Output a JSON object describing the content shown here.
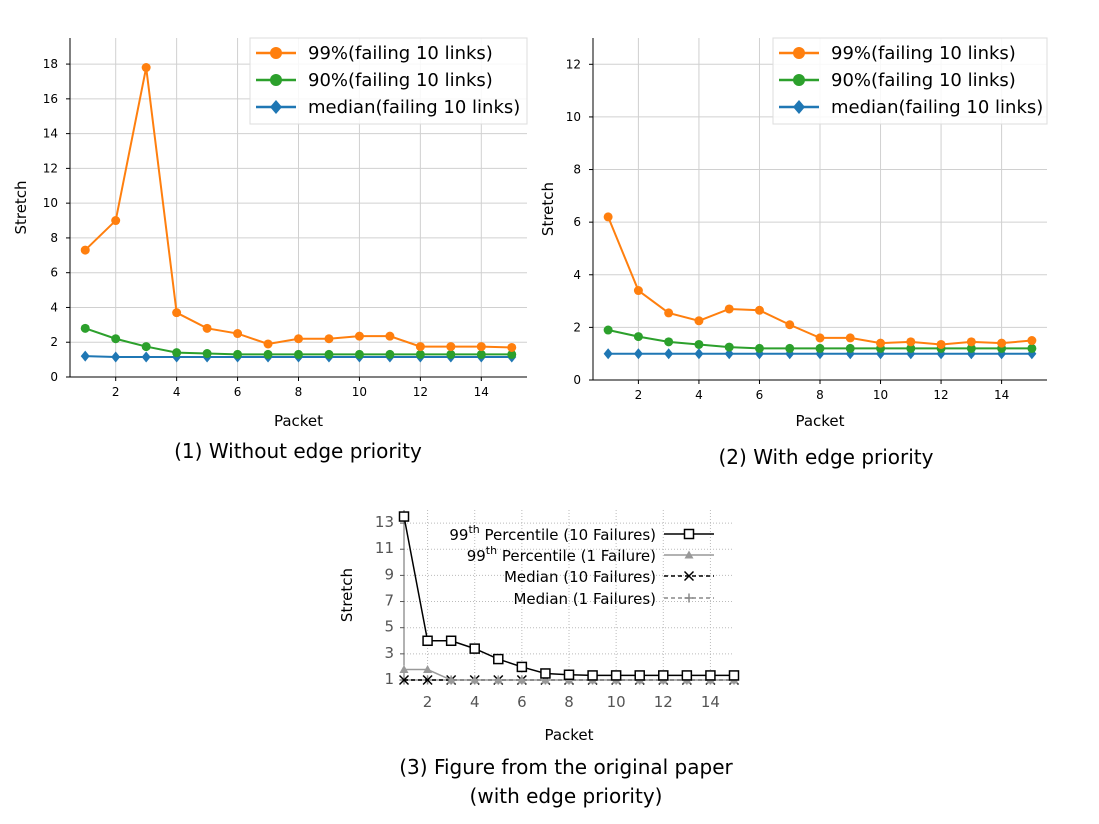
{
  "chart_data": [
    {
      "type": "line",
      "caption": "(1) Without edge priority",
      "xlabel": "Packet",
      "ylabel": "Stretch",
      "xlim": [
        0.5,
        15.5
      ],
      "ylim": [
        0,
        19.5
      ],
      "xticks": [
        "2",
        "4",
        "6",
        "8",
        "10",
        "12",
        "14"
      ],
      "yticks": [
        "0",
        "2",
        "4",
        "6",
        "8",
        "10",
        "12",
        "14",
        "16",
        "18"
      ],
      "grid": true,
      "legend_position": "top-right",
      "x": [
        1,
        2,
        3,
        4,
        5,
        6,
        7,
        8,
        9,
        10,
        11,
        12,
        13,
        14,
        15
      ],
      "series": [
        {
          "name": "99%(failing 10 links)",
          "color": "#ff7f0e",
          "marker": "circle",
          "values": [
            7.3,
            9.0,
            17.8,
            3.7,
            2.8,
            2.5,
            1.9,
            2.2,
            2.2,
            2.35,
            2.35,
            1.75,
            1.75,
            1.75,
            1.7
          ]
        },
        {
          "name": "90%(failing 10 links)",
          "color": "#2ca02c",
          "marker": "circle",
          "values": [
            2.8,
            2.2,
            1.75,
            1.4,
            1.35,
            1.3,
            1.3,
            1.3,
            1.3,
            1.3,
            1.3,
            1.3,
            1.3,
            1.3,
            1.3
          ]
        },
        {
          "name": "median(failing 10 links)",
          "color": "#1f77b4",
          "marker": "diamond",
          "values": [
            1.2,
            1.15,
            1.15,
            1.15,
            1.15,
            1.15,
            1.15,
            1.15,
            1.15,
            1.15,
            1.15,
            1.15,
            1.15,
            1.15,
            1.15
          ]
        }
      ]
    },
    {
      "type": "line",
      "caption": "(2) With edge priority",
      "xlabel": "Packet",
      "ylabel": "Stretch",
      "xlim": [
        0.5,
        15.5
      ],
      "ylim": [
        0,
        13
      ],
      "xticks": [
        "2",
        "4",
        "6",
        "8",
        "10",
        "12",
        "14"
      ],
      "yticks": [
        "0",
        "2",
        "4",
        "6",
        "8",
        "10",
        "12"
      ],
      "grid": true,
      "legend_position": "top-right",
      "x": [
        1,
        2,
        3,
        4,
        5,
        6,
        7,
        8,
        9,
        10,
        11,
        12,
        13,
        14,
        15
      ],
      "series": [
        {
          "name": "99%(failing 10 links)",
          "color": "#ff7f0e",
          "marker": "circle",
          "values": [
            6.2,
            3.4,
            2.55,
            2.25,
            2.7,
            2.65,
            2.1,
            1.6,
            1.6,
            1.4,
            1.45,
            1.35,
            1.45,
            1.4,
            1.5
          ]
        },
        {
          "name": "90%(failing 10 links)",
          "color": "#2ca02c",
          "marker": "circle",
          "values": [
            1.9,
            1.65,
            1.45,
            1.35,
            1.25,
            1.2,
            1.2,
            1.2,
            1.2,
            1.2,
            1.2,
            1.2,
            1.2,
            1.2,
            1.2
          ]
        },
        {
          "name": "median(failing 10 links)",
          "color": "#1f77b4",
          "marker": "diamond",
          "values": [
            1.0,
            1.0,
            1.0,
            1.0,
            1.0,
            1.0,
            1.0,
            1.0,
            1.0,
            1.0,
            1.0,
            1.0,
            1.0,
            1.0,
            1.0
          ]
        }
      ]
    },
    {
      "type": "line",
      "caption_line1": "(3) Figure from the original paper",
      "caption_line2": "(with edge priority)",
      "xlabel": "Packet",
      "ylabel": "Stretch",
      "xlim": [
        1,
        15
      ],
      "ylim": [
        1,
        14
      ],
      "xticks": [
        "2",
        "4",
        "6",
        "8",
        "10",
        "12",
        "14"
      ],
      "yticks": [
        "1",
        "3",
        "5",
        "7",
        "9",
        "11",
        "13"
      ],
      "grid": true,
      "legend_position": "top-right",
      "x": [
        1,
        2,
        3,
        4,
        5,
        6,
        7,
        8,
        9,
        10,
        11,
        12,
        13,
        14,
        15
      ],
      "series": [
        {
          "name": "99th Percentile (10 Failures)",
          "name_main": "99",
          "name_sup": "th",
          "name_rest": " Percentile (10 Failures)",
          "color": "#000000",
          "marker": "square",
          "dash": "solid",
          "values": [
            13.5,
            4.0,
            4.0,
            3.4,
            2.6,
            2.0,
            1.5,
            1.4,
            1.35,
            1.35,
            1.35,
            1.35,
            1.35,
            1.35,
            1.35
          ]
        },
        {
          "name": "99th Percentile (1 Failure)",
          "name_main": "99",
          "name_sup": "th",
          "name_rest": " Percentile (1 Failure)",
          "color": "#999999",
          "marker": "triangle",
          "dash": "solid",
          "values": [
            1.8,
            1.8,
            1.0,
            1.0,
            1.0,
            1.0,
            1.0,
            1.0,
            1.0,
            1.0,
            1.0,
            1.0,
            1.0,
            1.0,
            1.0
          ]
        },
        {
          "name": "Median (10 Failures)",
          "name_main": "Median (10 Failures)",
          "name_sup": "",
          "name_rest": "",
          "color": "#000000",
          "marker": "x",
          "dash": "dashed",
          "values": [
            1.0,
            1.0,
            1.0,
            1.0,
            1.0,
            1.0,
            1.0,
            1.0,
            1.0,
            1.0,
            1.0,
            1.0,
            1.0,
            1.0,
            1.0
          ]
        },
        {
          "name": "Median (1 Failures)",
          "name_main": "Median (1 Failures)",
          "name_sup": "",
          "name_rest": "",
          "color": "#888888",
          "marker": "plus",
          "dash": "dashed",
          "values": [
            1.0,
            1.0,
            1.0,
            1.0,
            1.0,
            1.0,
            1.0,
            1.0,
            1.0,
            1.0,
            1.0,
            1.0,
            1.0,
            1.0,
            1.0
          ]
        }
      ]
    }
  ]
}
